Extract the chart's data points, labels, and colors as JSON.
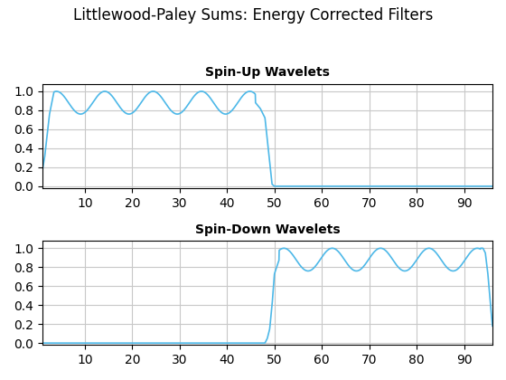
{
  "title": "Littlewood-Paley Sums: Energy Corrected Filters",
  "title_fontsize": 12,
  "ax1_title": "Spin-Up Wavelets",
  "ax2_title": "Spin-Down Wavelets",
  "subtitle_fontsize": 10,
  "line_color": "#4db8e8",
  "line_width": 1.2,
  "background_color": "#ffffff",
  "grid_color": "#c8c8c8",
  "xlim": [
    1,
    96
  ],
  "ylim": [
    -0.02,
    1.08
  ],
  "xticks": [
    10,
    20,
    30,
    40,
    50,
    60,
    70,
    80,
    90
  ],
  "yticks": [
    0,
    0.2,
    0.4,
    0.6,
    0.8,
    1.0
  ]
}
